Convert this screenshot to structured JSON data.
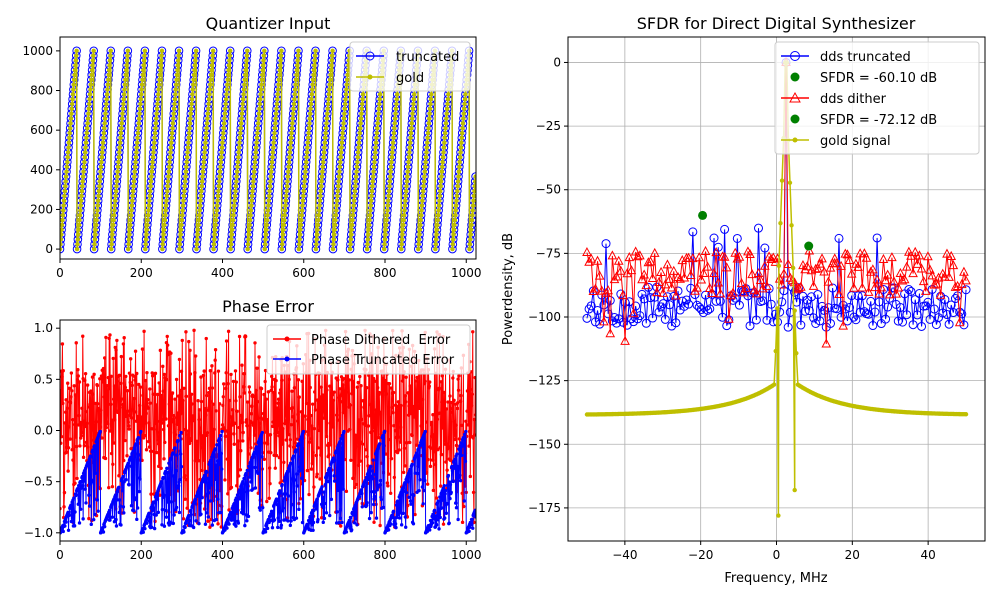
{
  "chart_data": [
    {
      "id": "quantizer",
      "type": "line",
      "title": "Quantizer Input",
      "xlabel": "",
      "ylabel": "",
      "xlim": [
        0,
        1024
      ],
      "ylim": [
        -50,
        1070
      ],
      "grid": false,
      "legend_position": "top-right",
      "xticks": [
        0,
        200,
        400,
        600,
        800,
        1000
      ],
      "yticks": [
        0,
        200,
        400,
        600,
        800,
        1000
      ],
      "xtick_labels": [
        "0",
        "200",
        "400",
        "600",
        "800",
        "1000"
      ],
      "ytick_labels": [
        "0",
        "200",
        "400",
        "600",
        "800",
        "1000"
      ],
      "series": [
        {
          "name": "truncated",
          "color": "#0000ff",
          "marker": "open-circle",
          "style": "sawtooth",
          "period_samples": 42,
          "min": 0,
          "max": 1020,
          "phase_step": 24.4
        },
        {
          "name": "gold",
          "color": "#bfbf00",
          "marker": "dot",
          "style": "sawtooth",
          "period_samples": 42,
          "min": 0,
          "max": 1020,
          "phase_step": 24.4
        }
      ]
    },
    {
      "id": "phase",
      "type": "line",
      "title": "Phase Error",
      "xlabel": "",
      "ylabel": "",
      "xlim": [
        0,
        1024
      ],
      "ylim": [
        -1.08,
        1.08
      ],
      "grid": false,
      "legend_position": "top-right",
      "xticks": [
        0,
        200,
        400,
        600,
        800,
        1000
      ],
      "yticks": [
        -1.0,
        -0.5,
        0.0,
        0.5,
        1.0
      ],
      "xtick_labels": [
        "0",
        "200",
        "400",
        "600",
        "800",
        "1000"
      ],
      "ytick_labels": [
        "−1.0",
        "−0.5",
        "0.0",
        "0.5",
        "1.0"
      ],
      "series": [
        {
          "name": "Phase Dithered  Error",
          "color": "#ff0000",
          "marker": "dot",
          "range": [
            -0.95,
            0.98
          ]
        },
        {
          "name": "Phase Truncated Error",
          "color": "#0000ff",
          "marker": "dot",
          "ramp_period": 100,
          "range": [
            -1.0,
            0.0
          ]
        }
      ]
    },
    {
      "id": "sfdr",
      "type": "line",
      "title": "SFDR for Direct Digital Synthesizer",
      "xlabel": "Frequency, MHz",
      "ylabel": "Powerdensity, dB",
      "xlim": [
        -55,
        55
      ],
      "ylim": [
        -188,
        10
      ],
      "grid": true,
      "legend_position": "top-right",
      "xticks": [
        -40,
        -20,
        0,
        20,
        40
      ],
      "yticks": [
        0,
        -25,
        -50,
        -75,
        -100,
        -125,
        -150,
        -175
      ],
      "xtick_labels": [
        "−40",
        "−20",
        "0",
        "20",
        "40"
      ],
      "ytick_labels": [
        "0",
        "−25",
        "−50",
        "−75",
        "−100",
        "−125",
        "−150",
        "−175"
      ],
      "series": [
        {
          "name": "dds truncated",
          "color": "#0000ff",
          "marker": "open-circle",
          "floor_db": [
            -104,
            -88
          ],
          "carrier_freq_mhz": 2.5,
          "carrier_db": 0
        },
        {
          "name": "SFDR = -60.10 dB",
          "color": "#008000",
          "marker": "filled-circle",
          "points": [
            {
              "x": -19.5,
              "y": -60.1
            }
          ]
        },
        {
          "name": "dds dither",
          "color": "#ff0000",
          "marker": "open-triangle",
          "floor_db": [
            -92,
            -74
          ],
          "carrier_freq_mhz": 2.5,
          "carrier_db": 0
        },
        {
          "name": "SFDR = -72.12 dB",
          "color": "#008000",
          "marker": "filled-circle",
          "points": [
            {
              "x": 8.5,
              "y": -72.12
            }
          ]
        },
        {
          "name": "gold signal",
          "color": "#bfbf00",
          "marker": "dot",
          "x_range": [
            -50,
            50
          ],
          "edge_db": -138.5,
          "shoulder_db": -123,
          "carrier_db": 0,
          "null_min_db": -178
        }
      ]
    }
  ]
}
